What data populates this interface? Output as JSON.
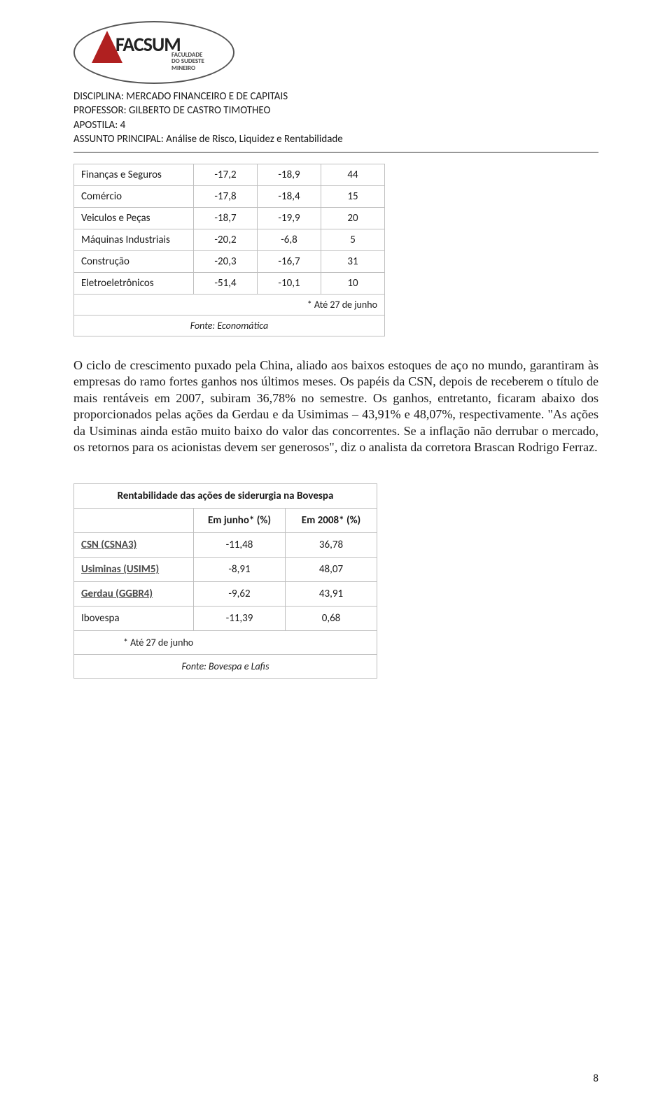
{
  "logo": {
    "main": "FACSUM",
    "sub1": "FACULDADE",
    "sub2": "DO SUDESTE",
    "sub3": "MINEIRO"
  },
  "header": {
    "line1": "DISCIPLINA: MERCADO FINANCEIRO E DE CAPITAIS",
    "line2": "PROFESSOR: GILBERTO DE CASTRO TIMOTHEO",
    "line3": "APOSTILA: 4",
    "line4": "ASSUNTO PRINCIPAL: Análise de Risco, Liquidez e Rentabilidade"
  },
  "table1": {
    "rows": [
      {
        "label": "Finanças e Seguros",
        "c1": "-17,2",
        "c2": "-18,9",
        "c3": "44"
      },
      {
        "label": "Comércio",
        "c1": "-17,8",
        "c2": "-18,4",
        "c3": "15"
      },
      {
        "label": "Veiculos e Peças",
        "c1": "-18,7",
        "c2": "-19,9",
        "c3": "20"
      },
      {
        "label": "Máquinas Industriais",
        "c1": "-20,2",
        "c2": "-6,8",
        "c3": "5"
      },
      {
        "label": "Construção",
        "c1": "-20,3",
        "c2": "-16,7",
        "c3": "31"
      },
      {
        "label": "Eletroeletrônicos",
        "c1": "-51,4",
        "c2": "-10,1",
        "c3": "10"
      }
    ],
    "note": "* Até 27 de junho",
    "source": "Fonte: Economática",
    "border_color": "#bfbfbf",
    "fontsize": 15
  },
  "paragraph": "O ciclo de crescimento puxado pela China, aliado aos baixos estoques de aço no mundo, garantiram às empresas do ramo fortes ganhos nos últimos meses. Os papéis da CSN, depois de receberem o título de mais rentáveis em 2007, subiram 36,78% no semestre. Os ganhos, entretanto, ficaram abaixo dos proporcionados pelas ações da Gerdau e da Usimimas – 43,91% e 48,07%, respectivamente. \"As ações da Usiminas ainda estão muito baixo do valor das concorrentes. Se a inflação não derrubar o mercado, os retornos para os acionistas devem ser generosos\", diz o analista da corretora Brascan Rodrigo Ferraz.",
  "table2": {
    "title": "Rentabilidade das ações de siderurgia na Bovespa",
    "col1": "Em junho* (%)",
    "col2": "Em 2008* (%)",
    "rows": [
      {
        "label": "CSN (CSNA3)",
        "link": true,
        "c1": "-11,48",
        "c2": "36,78"
      },
      {
        "label": "Usiminas (USIM5)",
        "link": true,
        "c1": "-8,91",
        "c2": "48,07"
      },
      {
        "label": "Gerdau (GGBR4)",
        "link": true,
        "c1": "-9,62",
        "c2": "43,91"
      },
      {
        "label": "Ibovespa",
        "link": false,
        "c1": "-11,39",
        "c2": "0,68"
      }
    ],
    "note": "* Até 27 de junho",
    "source": "Fonte: Bovespa e Lafis",
    "border_color": "#bfbfbf",
    "fontsize": 15
  },
  "page_number": "8",
  "colors": {
    "text": "#1a1a1a",
    "border": "#bfbfbf",
    "logo_red": "#b02020",
    "background": "#ffffff"
  }
}
